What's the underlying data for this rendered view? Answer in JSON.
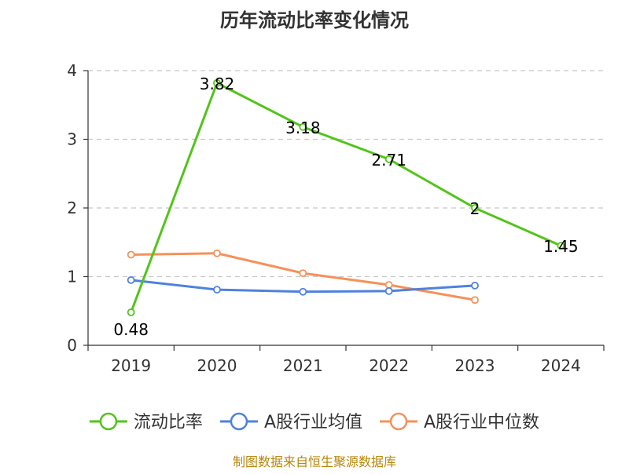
{
  "chart_data": {
    "type": "line",
    "title": "历年流动比率变化情况",
    "categories": [
      "2019",
      "2020",
      "2021",
      "2022",
      "2023",
      "2024"
    ],
    "ylim": [
      0,
      4
    ],
    "yticks": [
      0,
      1,
      2,
      3,
      4
    ],
    "grid": true,
    "legend_position": "bottom",
    "series": [
      {
        "name": "流动比率",
        "color": "#52c41a",
        "values": [
          0.48,
          3.82,
          3.18,
          2.71,
          2,
          1.45
        ],
        "labels": [
          "0.48",
          "3.82",
          "3.18",
          "2.71",
          "2",
          "1.45"
        ],
        "show_labels": true
      },
      {
        "name": "A股行业均值",
        "color": "#4f81de",
        "values": [
          0.95,
          0.81,
          0.78,
          0.79,
          0.87,
          null
        ],
        "show_labels": false
      },
      {
        "name": "A股行业中位数",
        "color": "#f5915a",
        "values": [
          1.32,
          1.34,
          1.05,
          0.88,
          0.66,
          null
        ],
        "show_labels": false
      }
    ]
  },
  "source": "制图数据来自恒生聚源数据库"
}
